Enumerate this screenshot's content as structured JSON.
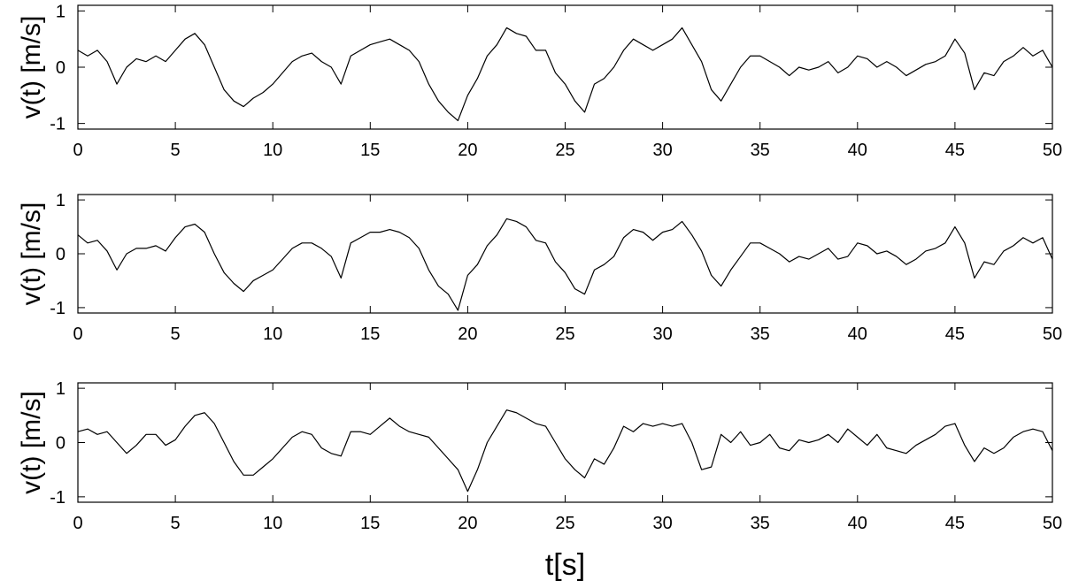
{
  "chart_data": [
    {
      "type": "line",
      "title": "",
      "xlabel": "",
      "ylabel": "v(t) [m/s]",
      "xlim": [
        0,
        50
      ],
      "ylim": [
        -1.1,
        1.1
      ],
      "xticks": [
        0,
        5,
        10,
        15,
        20,
        25,
        30,
        35,
        40,
        45,
        50
      ],
      "yticks": [
        -1,
        0,
        1
      ],
      "color": "#000000",
      "grid": false,
      "series": [
        {
          "x": [
            0,
            0.5,
            1,
            1.5,
            2,
            2.5,
            3,
            3.5,
            4,
            4.5,
            5,
            5.5,
            6,
            6.5,
            7,
            7.5,
            8,
            8.5,
            9,
            9.5,
            10,
            10.5,
            11,
            11.5,
            12,
            12.5,
            13,
            13.5,
            14,
            14.5,
            15,
            15.5,
            16,
            16.5,
            17,
            17.5,
            18,
            18.5,
            19,
            19.5,
            20,
            20.5,
            21,
            21.5,
            22,
            22.5,
            23,
            23.5,
            24,
            24.5,
            25,
            25.5,
            26,
            26.5,
            27,
            27.5,
            28,
            28.5,
            29,
            29.5,
            30,
            30.5,
            31,
            31.5,
            32,
            32.5,
            33,
            33.5,
            34,
            34.5,
            35,
            35.5,
            36,
            36.5,
            37,
            37.5,
            38,
            38.5,
            39,
            39.5,
            40,
            40.5,
            41,
            41.5,
            42,
            42.5,
            43,
            43.5,
            44,
            44.5,
            45,
            45.5,
            46,
            46.5,
            47,
            47.5,
            48,
            48.5,
            49,
            49.5,
            50
          ],
          "values": [
            0.3,
            0.2,
            0.3,
            0.1,
            -0.3,
            0.0,
            0.15,
            0.1,
            0.2,
            0.1,
            0.3,
            0.5,
            0.6,
            0.4,
            0.0,
            -0.4,
            -0.6,
            -0.7,
            -0.55,
            -0.45,
            -0.3,
            -0.1,
            0.1,
            0.2,
            0.25,
            0.1,
            0.0,
            -0.3,
            0.2,
            0.3,
            0.4,
            0.45,
            0.5,
            0.4,
            0.3,
            0.1,
            -0.3,
            -0.6,
            -0.8,
            -0.95,
            -0.5,
            -0.2,
            0.2,
            0.4,
            0.7,
            0.6,
            0.55,
            0.3,
            0.3,
            -0.1,
            -0.3,
            -0.6,
            -0.8,
            -0.3,
            -0.2,
            0.0,
            0.3,
            0.5,
            0.4,
            0.3,
            0.4,
            0.5,
            0.7,
            0.4,
            0.1,
            -0.4,
            -0.6,
            -0.3,
            0.0,
            0.2,
            0.2,
            0.1,
            0.0,
            -0.15,
            0.0,
            -0.05,
            0.0,
            0.1,
            -0.1,
            0.0,
            0.2,
            0.15,
            0.0,
            0.1,
            0.0,
            -0.15,
            -0.05,
            0.05,
            0.1,
            0.2,
            0.5,
            0.25,
            -0.4,
            -0.1,
            -0.15,
            0.1,
            0.2,
            0.35,
            0.2,
            0.3,
            0.0
          ]
        }
      ]
    },
    {
      "type": "line",
      "title": "",
      "xlabel": "",
      "ylabel": "v(t) [m/s]",
      "xlim": [
        0,
        50
      ],
      "ylim": [
        -1.1,
        1.1
      ],
      "xticks": [
        0,
        5,
        10,
        15,
        20,
        25,
        30,
        35,
        40,
        45,
        50
      ],
      "yticks": [
        -1,
        0,
        1
      ],
      "color": "#000000",
      "grid": false,
      "series": [
        {
          "x": [
            0,
            0.5,
            1,
            1.5,
            2,
            2.5,
            3,
            3.5,
            4,
            4.5,
            5,
            5.5,
            6,
            6.5,
            7,
            7.5,
            8,
            8.5,
            9,
            9.5,
            10,
            10.5,
            11,
            11.5,
            12,
            12.5,
            13,
            13.5,
            14,
            14.5,
            15,
            15.5,
            16,
            16.5,
            17,
            17.5,
            18,
            18.5,
            19,
            19.5,
            20,
            20.5,
            21,
            21.5,
            22,
            22.5,
            23,
            23.5,
            24,
            24.5,
            25,
            25.5,
            26,
            26.5,
            27,
            27.5,
            28,
            28.5,
            29,
            29.5,
            30,
            30.5,
            31,
            31.5,
            32,
            32.5,
            33,
            33.5,
            34,
            34.5,
            35,
            35.5,
            36,
            36.5,
            37,
            37.5,
            38,
            38.5,
            39,
            39.5,
            40,
            40.5,
            41,
            41.5,
            42,
            42.5,
            43,
            43.5,
            44,
            44.5,
            45,
            45.5,
            46,
            46.5,
            47,
            47.5,
            48,
            48.5,
            49,
            49.5,
            50
          ],
          "values": [
            0.35,
            0.2,
            0.25,
            0.05,
            -0.3,
            0.0,
            0.1,
            0.1,
            0.15,
            0.05,
            0.3,
            0.5,
            0.55,
            0.4,
            0.0,
            -0.35,
            -0.55,
            -0.7,
            -0.5,
            -0.4,
            -0.3,
            -0.1,
            0.1,
            0.2,
            0.2,
            0.1,
            -0.05,
            -0.45,
            0.2,
            0.3,
            0.4,
            0.4,
            0.45,
            0.4,
            0.3,
            0.1,
            -0.3,
            -0.6,
            -0.75,
            -1.05,
            -0.4,
            -0.2,
            0.15,
            0.35,
            0.65,
            0.6,
            0.5,
            0.25,
            0.2,
            -0.15,
            -0.35,
            -0.65,
            -0.75,
            -0.3,
            -0.2,
            -0.05,
            0.3,
            0.45,
            0.4,
            0.25,
            0.4,
            0.45,
            0.6,
            0.35,
            0.05,
            -0.4,
            -0.6,
            -0.3,
            -0.05,
            0.2,
            0.2,
            0.1,
            0.0,
            -0.15,
            -0.05,
            -0.1,
            0.0,
            0.1,
            -0.1,
            -0.05,
            0.2,
            0.15,
            0.0,
            0.05,
            -0.05,
            -0.2,
            -0.1,
            0.05,
            0.1,
            0.2,
            0.5,
            0.2,
            -0.45,
            -0.15,
            -0.2,
            0.05,
            0.15,
            0.3,
            0.2,
            0.3,
            -0.1
          ]
        }
      ]
    },
    {
      "type": "line",
      "title": "",
      "xlabel": "t[s]",
      "ylabel": "v(t) [m/s]",
      "xlim": [
        0,
        50
      ],
      "ylim": [
        -1.1,
        1.1
      ],
      "xticks": [
        0,
        5,
        10,
        15,
        20,
        25,
        30,
        35,
        40,
        45,
        50
      ],
      "yticks": [
        -1,
        0,
        1
      ],
      "color": "#000000",
      "grid": false,
      "series": [
        {
          "x": [
            0,
            0.5,
            1,
            1.5,
            2,
            2.5,
            3,
            3.5,
            4,
            4.5,
            5,
            5.5,
            6,
            6.5,
            7,
            7.5,
            8,
            8.5,
            9,
            9.5,
            10,
            10.5,
            11,
            11.5,
            12,
            12.5,
            13,
            13.5,
            14,
            14.5,
            15,
            15.5,
            16,
            16.5,
            17,
            17.5,
            18,
            18.5,
            19,
            19.5,
            20,
            20.5,
            21,
            21.5,
            22,
            22.5,
            23,
            23.5,
            24,
            24.5,
            25,
            25.5,
            26,
            26.5,
            27,
            27.5,
            28,
            28.5,
            29,
            29.5,
            30,
            30.5,
            31,
            31.5,
            32,
            32.5,
            33,
            33.5,
            34,
            34.5,
            35,
            35.5,
            36,
            36.5,
            37,
            37.5,
            38,
            38.5,
            39,
            39.5,
            40,
            40.5,
            41,
            41.5,
            42,
            42.5,
            43,
            43.5,
            44,
            44.5,
            45,
            45.5,
            46,
            46.5,
            47,
            47.5,
            48,
            48.5,
            49,
            49.5,
            50
          ],
          "values": [
            0.2,
            0.25,
            0.15,
            0.2,
            0.0,
            -0.2,
            -0.05,
            0.15,
            0.15,
            -0.05,
            0.05,
            0.3,
            0.5,
            0.55,
            0.35,
            0.0,
            -0.35,
            -0.6,
            -0.6,
            -0.45,
            -0.3,
            -0.1,
            0.1,
            0.2,
            0.15,
            -0.1,
            -0.2,
            -0.25,
            0.2,
            0.2,
            0.15,
            0.3,
            0.45,
            0.3,
            0.2,
            0.15,
            0.1,
            -0.1,
            -0.3,
            -0.5,
            -0.9,
            -0.5,
            0.0,
            0.3,
            0.6,
            0.55,
            0.45,
            0.35,
            0.3,
            0.0,
            -0.3,
            -0.5,
            -0.65,
            -0.3,
            -0.4,
            -0.1,
            0.3,
            0.2,
            0.35,
            0.3,
            0.35,
            0.3,
            0.35,
            0.0,
            -0.5,
            -0.45,
            0.15,
            0.0,
            0.2,
            -0.05,
            0.0,
            0.15,
            -0.1,
            -0.15,
            0.05,
            0.0,
            0.05,
            0.15,
            0.0,
            0.25,
            0.1,
            -0.05,
            0.15,
            -0.1,
            -0.15,
            -0.2,
            -0.05,
            0.05,
            0.15,
            0.3,
            0.35,
            -0.05,
            -0.35,
            -0.1,
            -0.2,
            -0.1,
            0.1,
            0.2,
            0.25,
            0.2,
            -0.15
          ]
        }
      ]
    }
  ]
}
